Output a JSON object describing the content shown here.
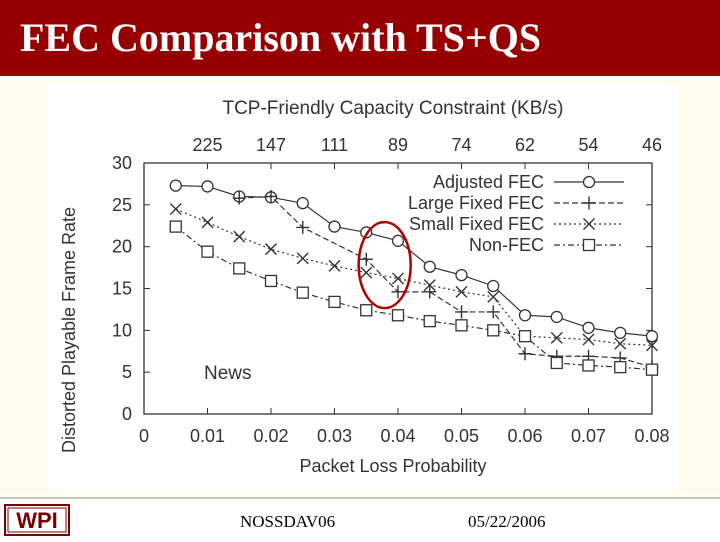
{
  "slide": {
    "title": "FEC Comparison with TS+QS",
    "footer_left": "NOSSDAV06",
    "footer_right": "05/22/2006",
    "logo_text": "WPI"
  },
  "colors": {
    "title_bar": "#960000",
    "highlight_circle": "#b20000",
    "content_bg": "#fffbee"
  },
  "chart_data": {
    "type": "line",
    "title": "TCP-Friendly Capacity Constraint (KB/s)",
    "xlabel": "Packet Loss Probability",
    "ylabel": "Distorted Playable Frame Rate",
    "annotation": "News",
    "xlim": [
      0,
      0.08
    ],
    "ylim": [
      0,
      30
    ],
    "x_ticks": [
      "0",
      "0.01",
      "0.02",
      "0.03",
      "0.04",
      "0.05",
      "0.06",
      "0.07",
      "0.08"
    ],
    "y_ticks": [
      "0",
      "5",
      "10",
      "15",
      "20",
      "25",
      "30"
    ],
    "top_axis": {
      "positions": [
        0.01,
        0.02,
        0.03,
        0.04,
        0.05,
        0.06,
        0.07,
        0.08
      ],
      "labels": [
        "225",
        "147",
        "111",
        "89",
        "74",
        "62",
        "54",
        "46"
      ]
    },
    "legend_position": "top-right",
    "grid": false,
    "x": [
      0.005,
      0.01,
      0.015,
      0.02,
      0.025,
      0.03,
      0.035,
      0.04,
      0.045,
      0.05,
      0.055,
      0.06,
      0.065,
      0.07,
      0.075,
      0.08
    ],
    "series": [
      {
        "name": "Adjusted FEC",
        "marker": "circle",
        "dash": "solid",
        "values": [
          27.3,
          27.2,
          26.0,
          25.9,
          25.2,
          22.4,
          21.7,
          20.7,
          17.6,
          16.6,
          15.3,
          11.8,
          11.6,
          10.3,
          9.7,
          9.3
        ]
      },
      {
        "name": "Large Fixed FEC",
        "marker": "plus",
        "dash": "dash",
        "values": [
          null,
          null,
          25.8,
          26.0,
          22.3,
          null,
          18.5,
          14.6,
          14.6,
          12.2,
          12.2,
          7.2,
          6.9,
          6.9,
          6.7,
          5.6
        ]
      },
      {
        "name": "Small Fixed FEC",
        "marker": "cross",
        "dash": "dot",
        "values": [
          24.5,
          22.9,
          21.2,
          19.7,
          18.6,
          17.7,
          16.9,
          16.2,
          15.4,
          14.6,
          14.0,
          9.3,
          9.1,
          8.9,
          8.4,
          8.2
        ]
      },
      {
        "name": "Non-FEC",
        "marker": "square",
        "dash": "dashdot",
        "values": [
          22.4,
          19.4,
          17.4,
          15.9,
          14.5,
          13.4,
          12.4,
          11.8,
          11.1,
          10.6,
          10.0,
          9.3,
          6.1,
          5.8,
          5.6,
          5.3
        ]
      }
    ],
    "highlight_ellipse": {
      "center_x": 0.0379,
      "center_y": 17.8
    }
  }
}
